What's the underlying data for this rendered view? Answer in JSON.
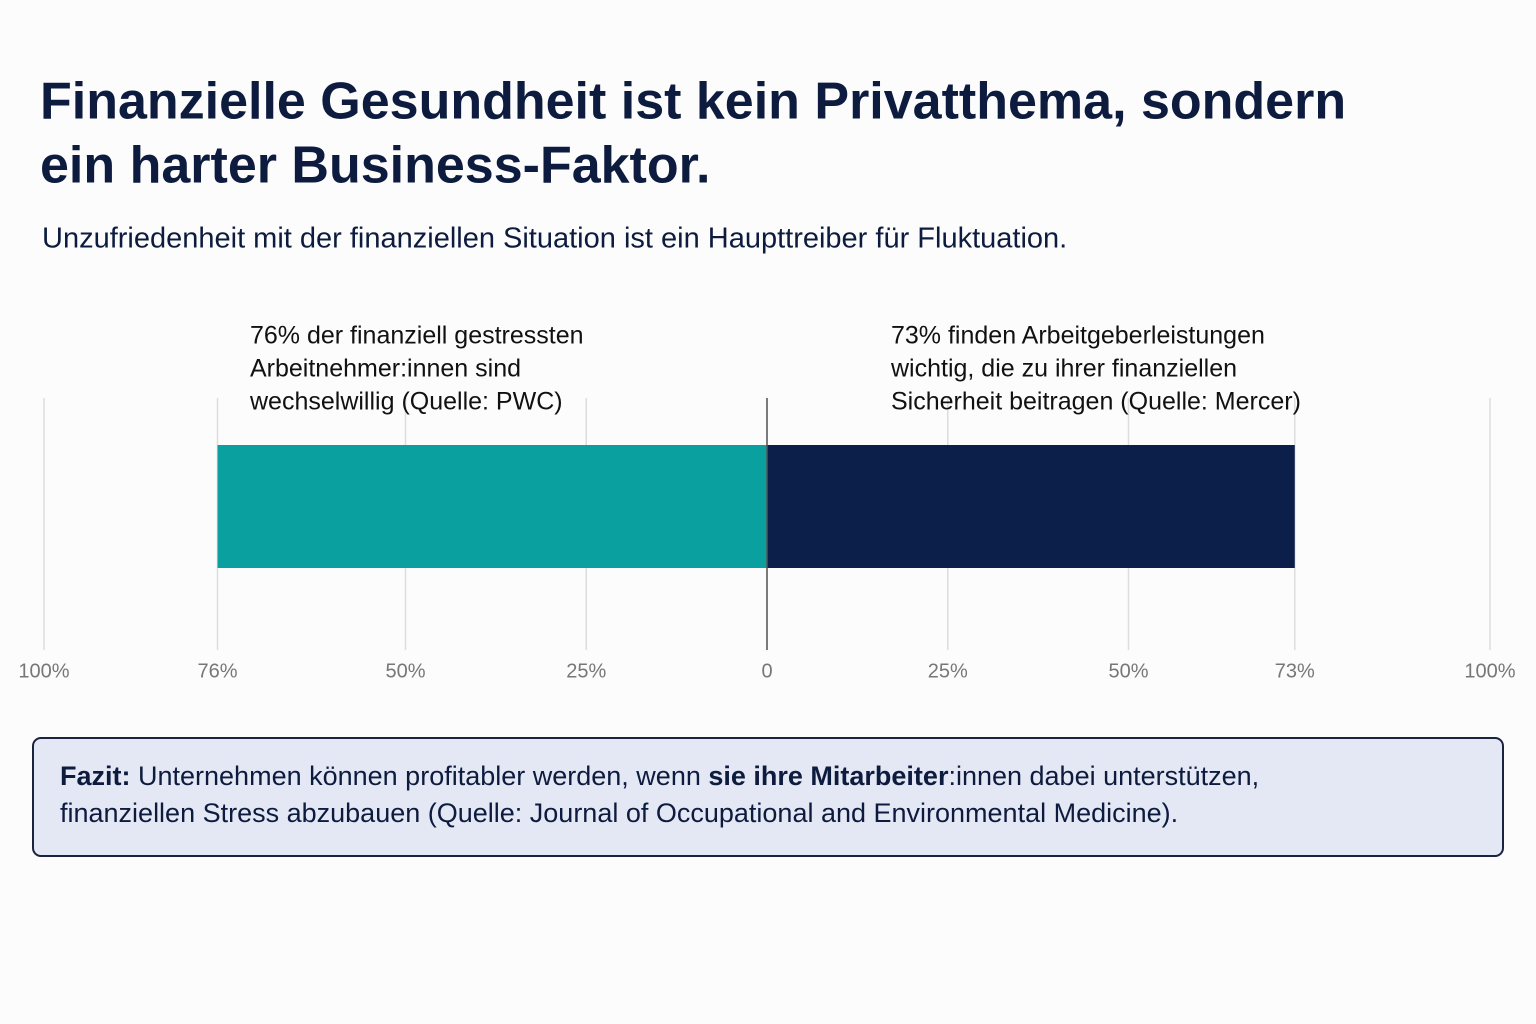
{
  "chart_data": {
    "type": "diverging-bar",
    "title": [
      "Finanzielle Gesundheit ist kein Privatthema, sondern",
      "ein harter Business-Faktor."
    ],
    "subtitle": "Unzufriedenheit mit der finanziellen Situation ist ein Haupttreiber für Fluktuation.",
    "annotations": [
      [
        "76% der finanziell gestressten",
        "Arbeitnehmer:innen sind",
        "wechselwillig (Quelle: PWC)"
      ],
      [
        "73% finden Arbeitgeberleistungen",
        "wichtig, die zu ihrer finanziellen",
        "Sicherheit beitragen (Quelle: Mercer)"
      ]
    ],
    "values": [
      -76,
      73
    ],
    "colors": [
      "#0aa0a0",
      "#0c1f4a"
    ],
    "xlim": [
      -100,
      100
    ],
    "xticks": [
      {
        "value": -100,
        "label": "100%"
      },
      {
        "value": -76,
        "label": "76%"
      },
      {
        "value": -50,
        "label": "50%"
      },
      {
        "value": -25,
        "label": "25%"
      },
      0,
      {
        "value": 25,
        "label": "25%"
      },
      {
        "value": 50,
        "label": "50%"
      },
      {
        "value": 73,
        "label": "73%"
      },
      {
        "value": 100,
        "label": "100%"
      }
    ],
    "grid": true,
    "note": [
      [
        {
          "text": "Fazit:",
          "bold": true
        },
        {
          "text": " Unternehmen können profitabler werden, wenn ",
          "bold": false
        },
        {
          "text": "sie ihre Mitarbeiter",
          "bold": true
        },
        {
          "text": ":innen dabei unterstützen,",
          "bold": false
        }
      ],
      [
        {
          "text": "finanziellen Stress abzubauen (Quelle: Journal of Occupational and Environmental Medicine).",
          "bold": false
        }
      ]
    ]
  }
}
